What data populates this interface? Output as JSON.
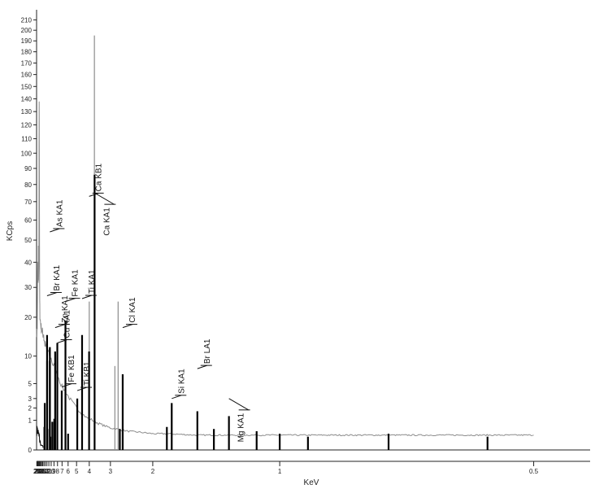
{
  "chart_data": {
    "type": "line",
    "title": "",
    "xlabel": "KeV",
    "ylabel": "KCps",
    "x_scale": "reciprocal",
    "x_reversed": true,
    "y_scale": "sqrt",
    "xlim": [
      23.5,
      0.45
    ],
    "ylim": [
      0,
      220
    ],
    "grid": false,
    "legend": "none",
    "x_ticks": [
      23,
      22,
      21,
      20,
      19,
      18,
      17,
      16,
      15,
      14,
      13,
      12,
      11,
      10,
      9,
      8,
      7,
      6,
      5,
      4,
      3,
      2,
      1,
      0.5
    ],
    "x_tick_labels": [
      "23",
      "22",
      "21",
      "20",
      "19",
      "18",
      "17",
      "16",
      "15",
      "14",
      "13",
      "12",
      "11",
      "10",
      "9",
      "8",
      "7",
      "6",
      "5",
      "4",
      "3",
      "2",
      "1",
      "0.5"
    ],
    "y_tick_labels": [
      "0",
      "1",
      "2",
      "3",
      "5",
      "10",
      "20",
      "30",
      "40",
      "50",
      "60",
      "70",
      "80",
      "90",
      "100",
      "110",
      "120",
      "130",
      "140",
      "150",
      "160",
      "170",
      "180",
      "190",
      "200",
      "210"
    ],
    "y_tick_values": [
      0,
      1,
      2,
      3,
      5,
      10,
      20,
      30,
      40,
      50,
      60,
      70,
      80,
      90,
      100,
      110,
      120,
      130,
      140,
      150,
      160,
      170,
      180,
      190,
      200,
      210
    ],
    "series": [
      {
        "style": "gray-spectrum",
        "color": "#8c8c8c",
        "points": [
          [
            23.4,
            16
          ],
          [
            23.0,
            15
          ],
          [
            22.5,
            16
          ],
          [
            22.2,
            17
          ],
          [
            21.9,
            24
          ],
          [
            21.6,
            35
          ],
          [
            21.3,
            38
          ],
          [
            21.0,
            34
          ],
          [
            20.6,
            31
          ],
          [
            20.3,
            38
          ],
          [
            20.1,
            44
          ],
          [
            19.9,
            35
          ],
          [
            19.6,
            33
          ],
          [
            19.4,
            40
          ],
          [
            19.2,
            75
          ],
          [
            19.05,
            120
          ],
          [
            18.95,
            130
          ],
          [
            18.8,
            118
          ],
          [
            18.6,
            80
          ],
          [
            18.4,
            38
          ],
          [
            18.2,
            24
          ],
          [
            18.0,
            21
          ],
          [
            17.5,
            19
          ],
          [
            17.0,
            18
          ],
          [
            16.5,
            17
          ],
          [
            16.0,
            16.5
          ],
          [
            15.5,
            16
          ],
          [
            15.0,
            15.5
          ],
          [
            14.5,
            15
          ],
          [
            14.2,
            15.5
          ],
          [
            14.0,
            14
          ],
          [
            13.5,
            13
          ],
          [
            13.0,
            12.5
          ],
          [
            12.5,
            12
          ],
          [
            12.0,
            11
          ],
          [
            11.5,
            11
          ],
          [
            11.0,
            10.5
          ],
          [
            10.5,
            10
          ],
          [
            10.0,
            9.5
          ],
          [
            9.5,
            8.5
          ],
          [
            9.0,
            8
          ],
          [
            8.5,
            7
          ],
          [
            8.0,
            6.5
          ],
          [
            7.5,
            5.5
          ],
          [
            7.0,
            4.5
          ],
          [
            6.5,
            4
          ],
          [
            6.0,
            3.3
          ],
          [
            5.5,
            2.6
          ],
          [
            5.0,
            2.0
          ],
          [
            4.6,
            1.6
          ],
          [
            4.2,
            1.2
          ],
          [
            3.8,
            1.0
          ],
          [
            3.5,
            0.8
          ],
          [
            3.2,
            0.65
          ],
          [
            3.0,
            0.55
          ],
          [
            2.8,
            0.5
          ],
          [
            2.5,
            0.4
          ],
          [
            2.2,
            0.35
          ],
          [
            2.0,
            0.3
          ],
          [
            1.8,
            0.3
          ],
          [
            1.5,
            0.25
          ],
          [
            1.3,
            0.25
          ],
          [
            1.1,
            0.25
          ],
          [
            1.0,
            0.25
          ],
          [
            0.8,
            0.25
          ],
          [
            0.6,
            0.25
          ],
          [
            0.5,
            0.25
          ]
        ]
      },
      {
        "style": "black-spectrum",
        "color": "#111111",
        "points": [
          [
            23.4,
            0.6
          ],
          [
            23.0,
            0.45
          ],
          [
            22.5,
            0.5
          ],
          [
            22.0,
            0.35
          ],
          [
            21.5,
            0.45
          ],
          [
            21.0,
            0.35
          ],
          [
            20.5,
            0.4
          ],
          [
            20.0,
            0.3
          ],
          [
            19.5,
            0.35
          ],
          [
            19.0,
            0.25
          ],
          [
            18.5,
            0.15
          ],
          [
            18.0,
            0.08
          ],
          [
            17.5,
            0.05
          ],
          [
            17.0,
            0.03
          ],
          [
            16.0,
            0.02
          ],
          [
            15.0,
            0.02
          ],
          [
            14.5,
            0.01
          ]
        ]
      }
    ],
    "gray_spikes": [
      {
        "x": 3.7,
        "y": 195
      },
      {
        "x": 4.0,
        "y": 25
      },
      {
        "x": 2.75,
        "y": 25
      },
      {
        "x": 2.85,
        "y": 8
      }
    ],
    "black_spikes": [
      {
        "x": 13.38,
        "y": 2.5
      },
      {
        "x": 13.63,
        "y": 0.6
      },
      {
        "x": 11.92,
        "y": 15
      },
      {
        "x": 11.88,
        "y": 9
      },
      {
        "x": 11.75,
        "y": 0.5
      },
      {
        "x": 10.54,
        "y": 12
      },
      {
        "x": 10.51,
        "y": 9
      },
      {
        "x": 10.3,
        "y": 0.2
      },
      {
        "x": 9.57,
        "y": 0.9
      },
      {
        "x": 8.9,
        "y": 1.1
      },
      {
        "x": 8.64,
        "y": 11
      },
      {
        "x": 8.05,
        "y": 13
      },
      {
        "x": 7.06,
        "y": 4
      },
      {
        "x": 6.4,
        "y": 19
      },
      {
        "x": 6.0,
        "y": 0.3
      },
      {
        "x": 4.93,
        "y": 3
      },
      {
        "x": 4.51,
        "y": 15
      },
      {
        "x": 4.01,
        "y": 11
      },
      {
        "x": 3.69,
        "y": 86
      },
      {
        "x": 2.62,
        "y": 6.5
      },
      {
        "x": 2.7,
        "y": 0.5
      },
      {
        "x": 1.74,
        "y": 2.5
      },
      {
        "x": 1.8,
        "y": 0.6
      },
      {
        "x": 1.48,
        "y": 1.7
      },
      {
        "x": 1.25,
        "y": 1.3
      },
      {
        "x": 1.35,
        "y": 0.5
      },
      {
        "x": 1.1,
        "y": 0.4
      },
      {
        "x": 1.0,
        "y": 0.3
      },
      {
        "x": 0.9,
        "y": 0.2
      },
      {
        "x": 0.7,
        "y": 0.3
      },
      {
        "x": 0.55,
        "y": 0.2
      }
    ],
    "peak_labels": [
      {
        "text": "Br KA1",
        "x": 11.92,
        "y": 27
      },
      {
        "text": "As KA1",
        "x": 10.54,
        "y": 54
      },
      {
        "text": "Zn KA1",
        "x": 8.64,
        "y": 17
      },
      {
        "text": "Cu KA1",
        "x": 8.05,
        "y": 13
      },
      {
        "text": "Fe KB1",
        "x": 7.06,
        "y": 4.5
      },
      {
        "text": "Fe KA1",
        "x": 6.4,
        "y": 25
      },
      {
        "text": "Ti KB1",
        "x": 4.93,
        "y": 4.0
      },
      {
        "text": "Ti KA1",
        "x": 4.51,
        "y": 26
      },
      {
        "text": "Ca KB1",
        "x": 4.01,
        "y": 73
      },
      {
        "text": "Ca KA1",
        "x": 3.69,
        "y": 75,
        "leader": "descend"
      },
      {
        "text": "Cl KA1",
        "x": 2.62,
        "y": 17
      },
      {
        "text": "Si KA1",
        "x": 1.74,
        "y": 3.0
      },
      {
        "text": "Br LA1",
        "x": 1.48,
        "y": 7.5
      },
      {
        "text": "Mg KA1",
        "x": 1.25,
        "y": 3.0,
        "leader": "descend"
      }
    ]
  }
}
